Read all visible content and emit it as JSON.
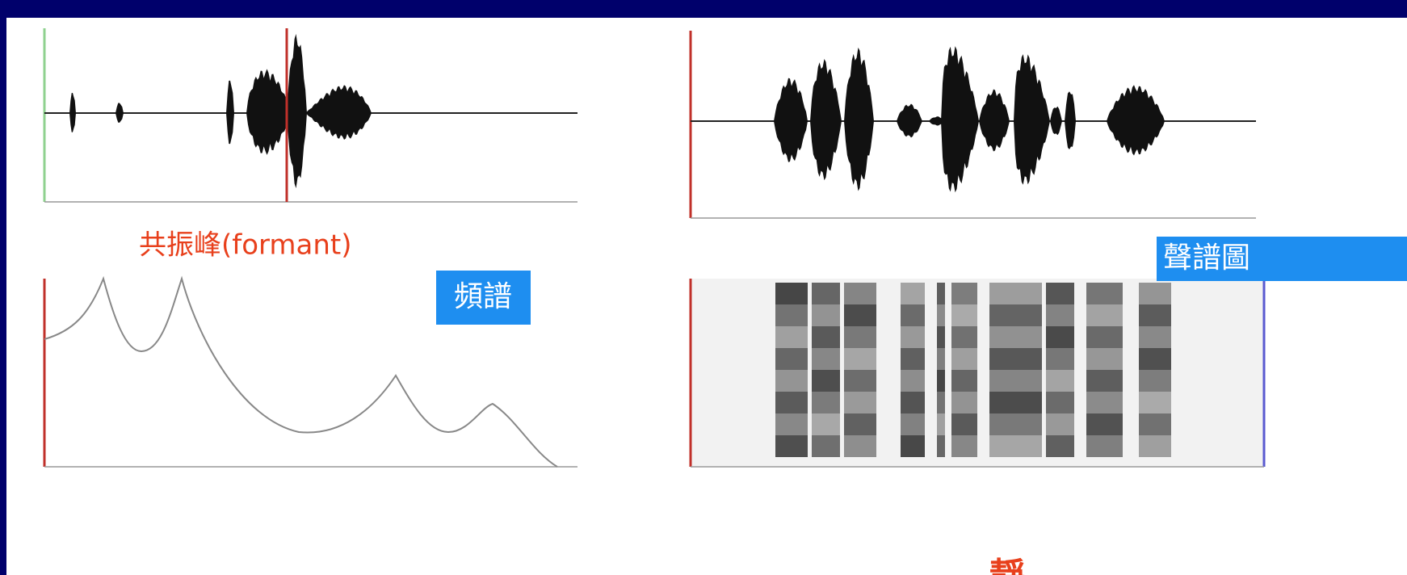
{
  "annotations": {
    "formant": "共振峰(formant)",
    "spectrum": "頻譜",
    "spectrogram": "聲譜圖",
    "bottom": "靜"
  }
}
